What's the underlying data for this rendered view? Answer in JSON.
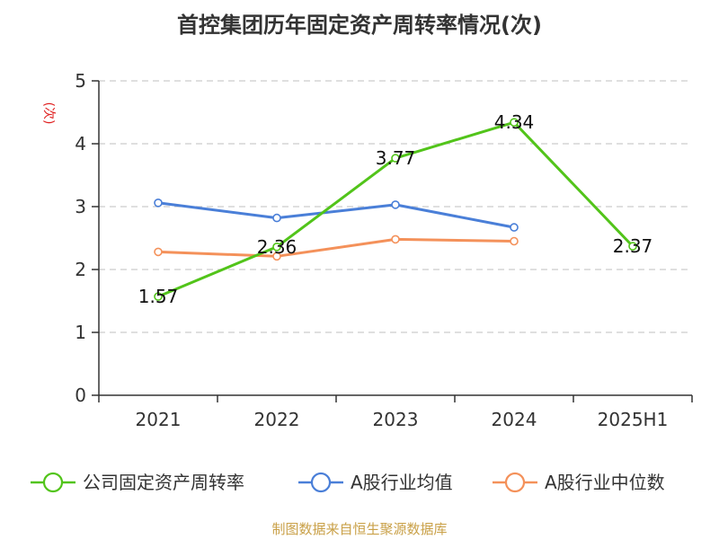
{
  "colors": {
    "background": "#ffffff",
    "axis": "#333333",
    "grid": "#cccccc",
    "ylabel": "#e02020",
    "source": "#c9a047"
  },
  "chart_data": {
    "type": "line",
    "title": "首控集团历年固定资产周转率情况(次)",
    "ylabel": "(次)",
    "xlabel": "",
    "categories": [
      "2021",
      "2022",
      "2023",
      "2024",
      "2025H1"
    ],
    "ylim": [
      0,
      5
    ],
    "yticks": [
      0,
      1,
      2,
      3,
      4,
      5
    ],
    "grid": true,
    "grid_style": "dashed",
    "legend_position": "bottom",
    "series": [
      {
        "name": "公司固定资产周转率",
        "color": "#52c41a",
        "values": [
          1.57,
          2.36,
          3.77,
          4.34,
          2.37
        ],
        "labels": [
          "1.57",
          "2.36",
          "3.77",
          "4.34",
          "2.37"
        ]
      },
      {
        "name": "A股行业均值",
        "color": "#4a7fd8",
        "values": [
          3.06,
          2.82,
          3.03,
          2.67,
          null
        ]
      },
      {
        "name": "A股行业中位数",
        "color": "#f4915a",
        "values": [
          2.28,
          2.21,
          2.48,
          2.45,
          null
        ]
      }
    ]
  },
  "source": "制图数据来自恒生聚源数据库"
}
